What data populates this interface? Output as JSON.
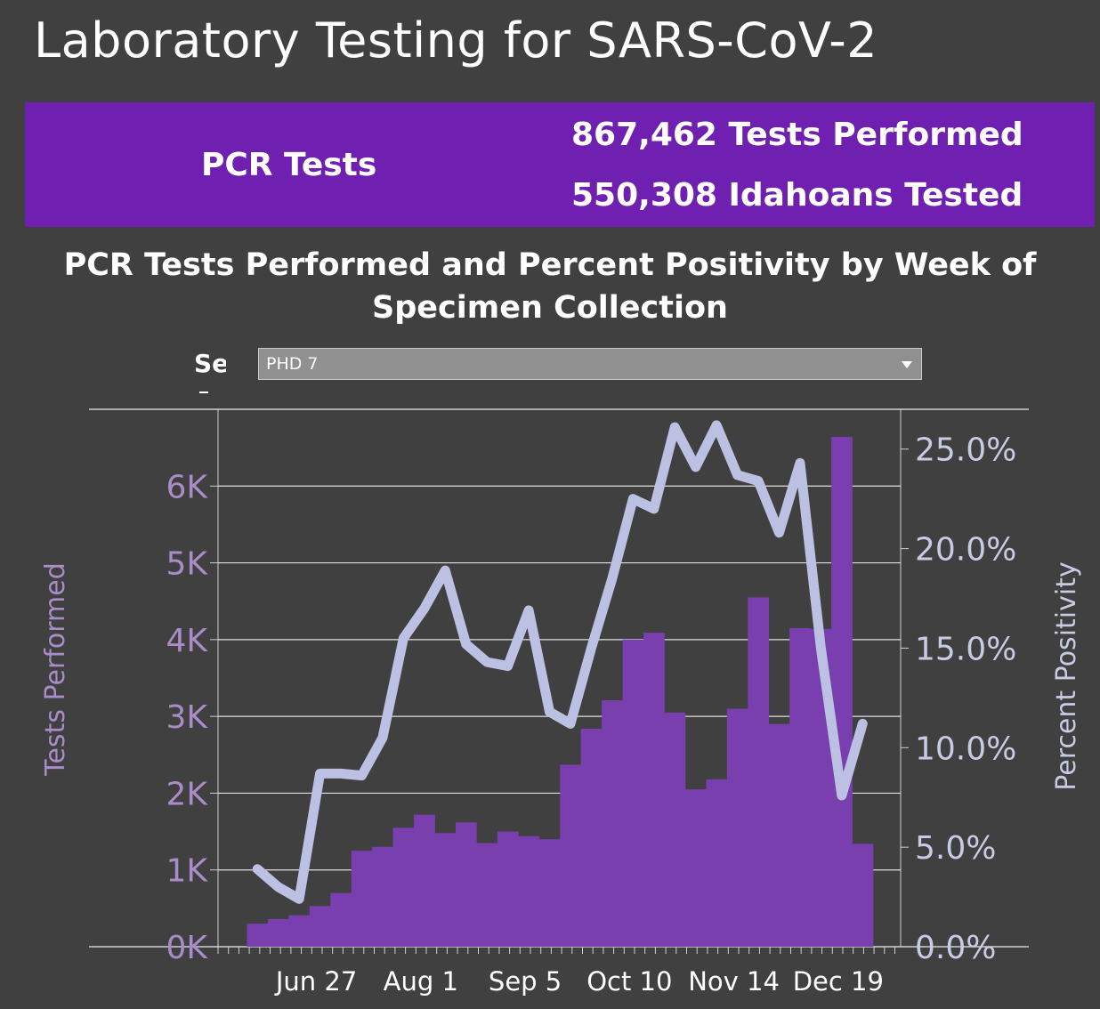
{
  "page": {
    "title": "Laboratory Testing for SARS-CoV-2"
  },
  "banner": {
    "label": "PCR Tests",
    "tests_performed": "867,462 Tests Performed",
    "people_tested": "550,308 Idahoans Tested"
  },
  "filter": {
    "label": "Se",
    "selected": "PHD 7"
  },
  "colors": {
    "bar": "#7a3fae",
    "line": "#bcc1e3",
    "left_axis_text": "#a98cc8",
    "right_axis_text": "#c8cbe3",
    "banner": "#7020b0",
    "background": "#404040"
  },
  "chart_data": {
    "type": "bar",
    "title": "PCR Tests Performed and Percent Positivity by Week of Specimen Collection",
    "ylabel": "Tests Performed",
    "ylabel_right": "Percent Positivity",
    "xlabel": "",
    "x_tick_labels": [
      "Jun 27",
      "Aug 1",
      "Sep 5",
      "Oct 10",
      "Nov 14",
      "Dec 19"
    ],
    "y_ticks": [
      "0K",
      "1K",
      "2K",
      "3K",
      "4K",
      "5K",
      "6K"
    ],
    "y2_ticks": [
      "0.0%",
      "5.0%",
      "10.0%",
      "15.0%",
      "20.0%",
      "25.0%"
    ],
    "ylim": [
      0,
      7000
    ],
    "y2lim": [
      0,
      27
    ],
    "grid": true,
    "series": [
      {
        "type": "bar",
        "values": [
          300,
          360,
          410,
          530,
          700,
          1250,
          1300,
          1550,
          1720,
          1480,
          1620,
          1350,
          1500,
          1440,
          1400,
          2370,
          2840,
          3210,
          4000,
          4090,
          3050,
          2050,
          2180,
          3100,
          4550,
          2900,
          4150,
          4140,
          6640,
          1340
        ]
      },
      {
        "type": "line",
        "values": [
          3.9,
          3.0,
          2.4,
          8.7,
          8.7,
          8.6,
          10.5,
          15.5,
          17.0,
          18.9,
          15.2,
          14.3,
          14.1,
          16.9,
          11.8,
          11.2,
          15.0,
          18.5,
          22.5,
          22.0,
          26.1,
          24.1,
          26.2,
          23.7,
          23.4,
          20.8,
          24.3,
          15.0,
          7.6,
          11.2
        ]
      }
    ]
  }
}
